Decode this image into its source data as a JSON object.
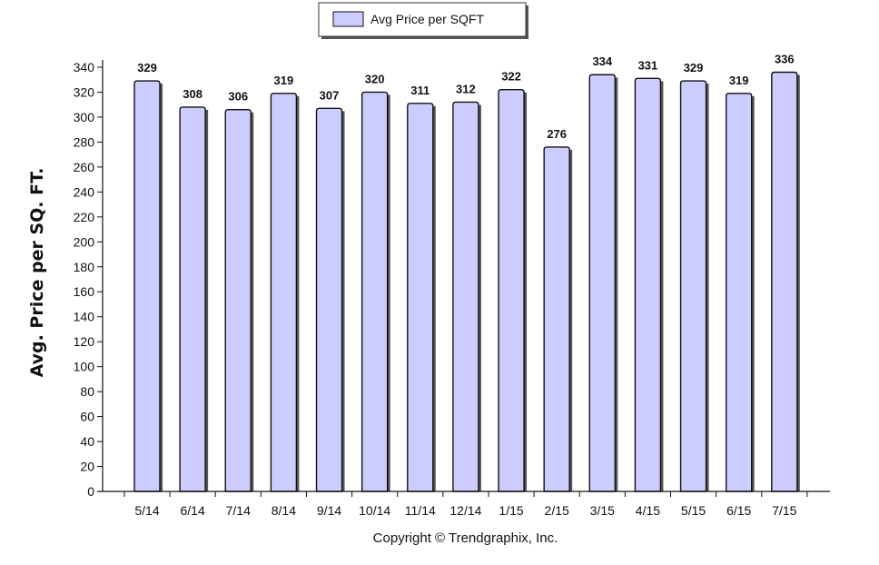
{
  "chart_data": {
    "type": "bar",
    "categories": [
      "5/14",
      "6/14",
      "7/14",
      "8/14",
      "9/14",
      "10/14",
      "11/14",
      "12/14",
      "1/15",
      "2/15",
      "3/15",
      "4/15",
      "5/15",
      "6/15",
      "7/15"
    ],
    "series": [
      {
        "name": "Avg Price per SQFT",
        "values": [
          329,
          308,
          306,
          319,
          307,
          320,
          311,
          312,
          322,
          276,
          334,
          331,
          329,
          319,
          336
        ]
      }
    ],
    "title": "",
    "xlabel": "",
    "ylabel": "Avg. Price per SQ. FT.",
    "ylim": [
      0,
      340
    ],
    "yticks": [
      0,
      20,
      40,
      60,
      80,
      100,
      120,
      140,
      160,
      180,
      200,
      220,
      240,
      260,
      280,
      300,
      320,
      340
    ],
    "grid": false,
    "legend_position": "top-center",
    "data_labels": true,
    "bar_color": "#ccccff",
    "bar_edge_color": "#111111"
  },
  "copyright": "Copyright © Trendgraphix, Inc."
}
